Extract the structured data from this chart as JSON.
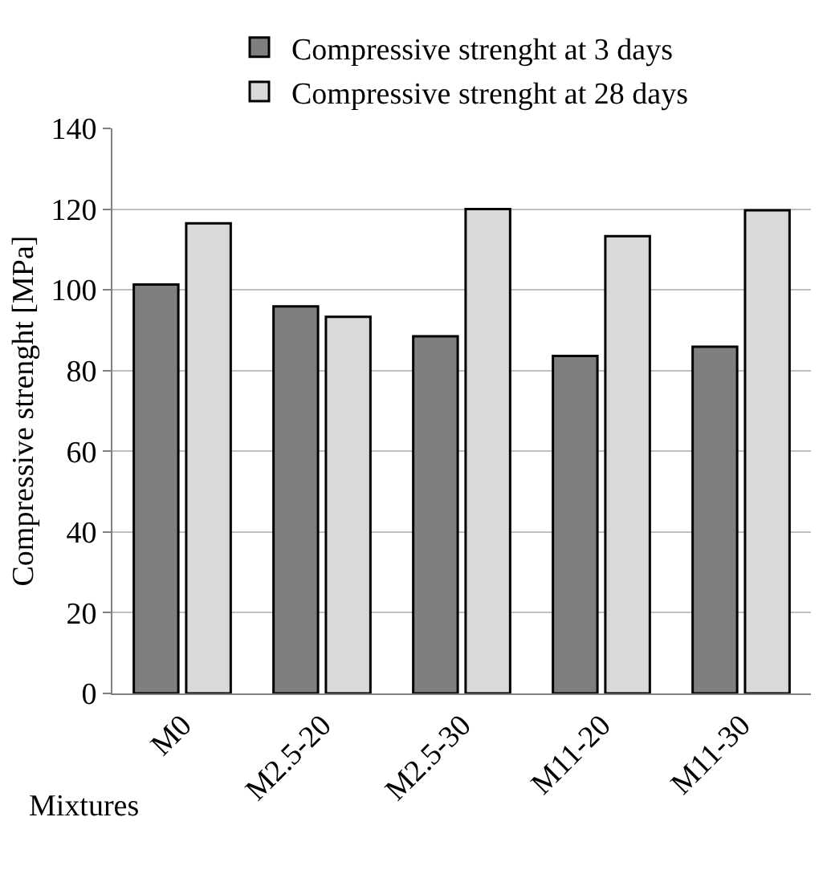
{
  "chart_data": {
    "type": "bar",
    "categories": [
      "M0",
      "M2.5-20",
      "M2.5-30",
      "M11-20",
      "M11-30"
    ],
    "series": [
      {
        "name": "Compressive strenght at 3 days",
        "color": "#7f7f7f",
        "values": [
          101.3,
          95.9,
          88.5,
          83.6,
          85.9
        ]
      },
      {
        "name": "Compressive strenght at 28 days",
        "color": "#d9d9d9",
        "values": [
          116.5,
          93.3,
          120,
          113.3,
          119.7
        ]
      }
    ],
    "xlabel": "Mixtures",
    "ylabel": "Compressive strenght [MPa]",
    "ylim": [
      0,
      140
    ],
    "yticks": [
      0,
      20,
      40,
      60,
      80,
      100,
      120,
      140
    ],
    "grid": "y",
    "legend": "top"
  }
}
